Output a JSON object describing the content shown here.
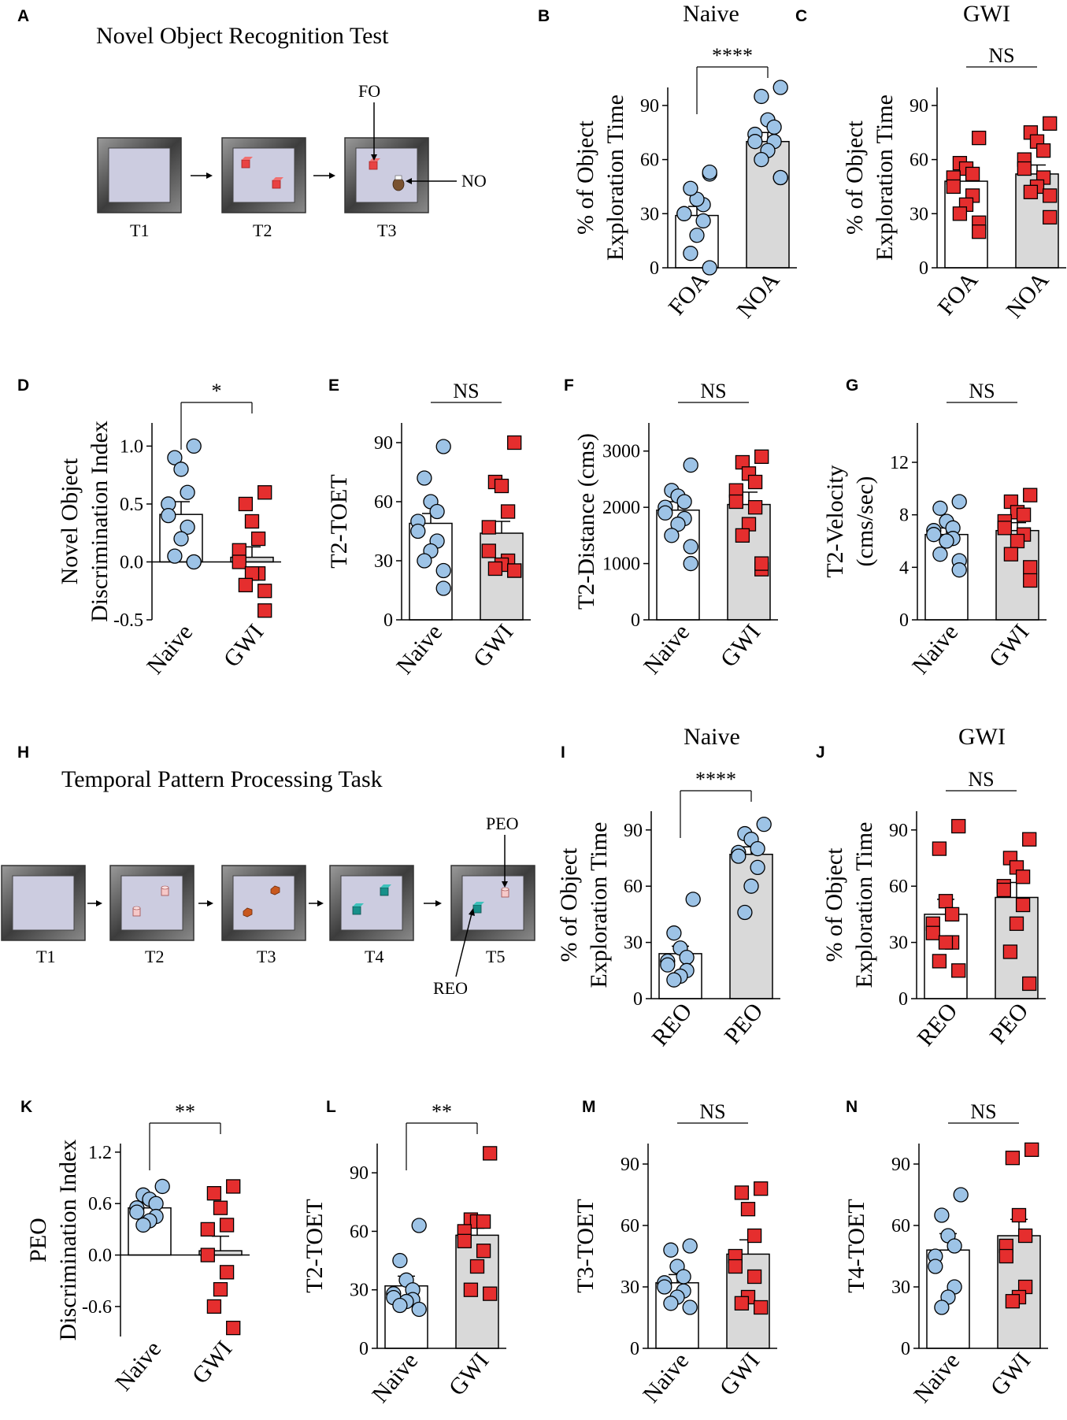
{
  "panel_letters": [
    "A",
    "B",
    "C",
    "D",
    "E",
    "F",
    "G",
    "H",
    "I",
    "J",
    "K",
    "L",
    "M",
    "N"
  ],
  "schematics": {
    "nor": {
      "title": "Novel Object Recognition Test",
      "trials": [
        "T1",
        "T2",
        "T3"
      ],
      "callouts": {
        "fo": "FO",
        "no": "NO"
      },
      "colors": {
        "arena_floor": "#cccce0",
        "object": "#e84343",
        "novel_object": "#7a5230"
      }
    },
    "tpp": {
      "title": "Temporal Pattern Processing Task",
      "trials": [
        "T1",
        "T2",
        "T3",
        "T4",
        "T5"
      ],
      "callouts": {
        "peo": "PEO",
        "reo": "REO"
      },
      "colors": {
        "cylinder": "#f6c9c9",
        "hexagon": "#c8581e",
        "cube": "#17908a"
      }
    }
  },
  "legend_colors": {
    "naive_marker": "#9dc3e6",
    "gwi_marker": "#e52e2e",
    "gray_bar": "#d9d9d9",
    "white_bar": "#ffffff"
  },
  "chart_data": [
    {
      "id": "B",
      "type": "bar",
      "title": "Naive",
      "ylabel": [
        "% of Object",
        "Exploration Time"
      ],
      "ylim": [
        0,
        100
      ],
      "yticks": [
        0,
        30,
        60,
        90
      ],
      "significance": "****",
      "categories": [
        "FOA",
        "NOA"
      ],
      "series": [
        {
          "name": "FOA",
          "mean": 29,
          "sem": 5,
          "marker": "circle",
          "bar": "white",
          "points": [
            0,
            8,
            18,
            26,
            30,
            30,
            35,
            38,
            44,
            52,
            53
          ]
        },
        {
          "name": "NOA",
          "mean": 70,
          "sem": 5,
          "marker": "circle",
          "bar": "gray",
          "points": [
            100,
            95,
            82,
            78,
            74,
            70,
            70,
            65,
            60,
            50,
            50
          ]
        }
      ]
    },
    {
      "id": "C",
      "type": "bar",
      "title": "GWI",
      "ylabel": [
        "% of Object",
        "Exploration Time"
      ],
      "ylim": [
        0,
        100
      ],
      "yticks": [
        0,
        30,
        60,
        90
      ],
      "significance": "NS",
      "categories": [
        "FOA",
        "NOA"
      ],
      "series": [
        {
          "name": "FOA",
          "mean": 48,
          "sem": 5,
          "marker": "square",
          "bar": "white",
          "points": [
            72,
            58,
            55,
            52,
            50,
            45,
            40,
            35,
            30,
            25,
            20
          ]
        },
        {
          "name": "NOA",
          "mean": 52,
          "sem": 5,
          "marker": "square",
          "bar": "gray",
          "points": [
            80,
            75,
            70,
            65,
            60,
            55,
            50,
            45,
            42,
            40,
            28
          ]
        }
      ]
    },
    {
      "id": "D",
      "type": "bar",
      "ylabel": [
        "Novel Object",
        "Discrimination Index"
      ],
      "ylim": [
        -0.5,
        1.2
      ],
      "yticks": [
        -0.5,
        0.0,
        0.5,
        1.0
      ],
      "yticklabels": [
        "-0.5",
        "0.0",
        "0.5",
        "1.0"
      ],
      "significance": "*",
      "categories": [
        "Naive",
        "GWI"
      ],
      "series": [
        {
          "name": "Naive",
          "mean": 0.41,
          "sem": 0.11,
          "marker": "circle",
          "bar": "white",
          "points": [
            1.0,
            0.9,
            0.8,
            0.6,
            0.5,
            0.4,
            0.3,
            0.2,
            0.05,
            0.0,
            0.0
          ]
        },
        {
          "name": "GWI",
          "mean": 0.04,
          "sem": 0.09,
          "marker": "square",
          "bar": "gray",
          "points": [
            0.6,
            0.5,
            0.35,
            0.2,
            0.1,
            0.0,
            -0.1,
            -0.1,
            -0.2,
            -0.25,
            -0.42
          ]
        }
      ]
    },
    {
      "id": "E",
      "type": "bar",
      "ylabel": [
        "T2-TOET"
      ],
      "ylim": [
        0,
        100
      ],
      "yticks": [
        0,
        30,
        60,
        90
      ],
      "significance": "NS",
      "categories": [
        "Naive",
        "GWI"
      ],
      "series": [
        {
          "name": "Naive",
          "mean": 49,
          "sem": 5,
          "marker": "circle",
          "bar": "white",
          "points": [
            88,
            72,
            60,
            55,
            50,
            45,
            40,
            35,
            30,
            25,
            16
          ]
        },
        {
          "name": "GWI",
          "mean": 44,
          "sem": 6,
          "marker": "square",
          "bar": "gray",
          "points": [
            90,
            70,
            68,
            55,
            47,
            35,
            30,
            28,
            26,
            25,
            25
          ]
        }
      ]
    },
    {
      "id": "F",
      "type": "bar",
      "ylabel": [
        "T2-Distance (cms)"
      ],
      "ylim": [
        0,
        3500
      ],
      "yticks": [
        0,
        1000,
        2000,
        3000
      ],
      "significance": "NS",
      "categories": [
        "Naive",
        "GWI"
      ],
      "series": [
        {
          "name": "Naive",
          "mean": 1950,
          "sem": 150,
          "marker": "circle",
          "bar": "white",
          "points": [
            2750,
            2300,
            2200,
            2100,
            2000,
            1900,
            1800,
            1700,
            1500,
            1300,
            1000
          ]
        },
        {
          "name": "GWI",
          "mean": 2050,
          "sem": 220,
          "marker": "square",
          "bar": "gray",
          "points": [
            2900,
            2800,
            2600,
            2450,
            2300,
            2100,
            2000,
            1700,
            1500,
            900,
            1000
          ]
        }
      ]
    },
    {
      "id": "G",
      "type": "bar",
      "ylabel": [
        "T2-Velocity",
        "(cms/sec)"
      ],
      "ylim": [
        0,
        15
      ],
      "yticks": [
        0,
        4,
        8,
        12
      ],
      "significance": "NS",
      "categories": [
        "Naive",
        "GWI"
      ],
      "series": [
        {
          "name": "Naive",
          "mean": 6.5,
          "sem": 0.5,
          "marker": "circle",
          "bar": "white",
          "points": [
            9,
            8.5,
            7.5,
            7,
            6.8,
            6.5,
            6.2,
            6,
            5,
            4.5,
            3.8
          ]
        },
        {
          "name": "GWI",
          "mean": 6.8,
          "sem": 0.6,
          "marker": "square",
          "bar": "gray",
          "points": [
            9.5,
            9,
            8.2,
            8,
            7.5,
            7,
            6.5,
            6,
            5,
            4,
            3
          ]
        }
      ]
    },
    {
      "id": "I",
      "type": "bar",
      "title": "Naive",
      "ylabel": [
        "% of Object",
        "Exploration Time"
      ],
      "ylim": [
        0,
        100
      ],
      "yticks": [
        0,
        30,
        60,
        90
      ],
      "significance": "****",
      "categories": [
        "REO",
        "PEO"
      ],
      "series": [
        {
          "name": "REO",
          "mean": 24,
          "sem": 4,
          "marker": "circle",
          "bar": "white",
          "points": [
            53,
            35,
            27,
            22,
            20,
            18,
            15,
            12,
            10
          ]
        },
        {
          "name": "PEO",
          "mean": 77,
          "sem": 4,
          "marker": "circle",
          "bar": "gray",
          "points": [
            93,
            88,
            85,
            80,
            78,
            76,
            70,
            60,
            46
          ]
        }
      ]
    },
    {
      "id": "J",
      "type": "bar",
      "title": "GWI",
      "ylabel": [
        "% of Object",
        "Exploration Time"
      ],
      "ylim": [
        0,
        100
      ],
      "yticks": [
        0,
        30,
        60,
        90
      ],
      "significance": "NS",
      "categories": [
        "REO",
        "PEO"
      ],
      "series": [
        {
          "name": "REO",
          "mean": 45,
          "sem": 8,
          "marker": "square",
          "bar": "white",
          "points": [
            92,
            80,
            52,
            45,
            40,
            35,
            30,
            30,
            20,
            15
          ]
        },
        {
          "name": "PEO",
          "mean": 54,
          "sem": 8,
          "marker": "square",
          "bar": "gray",
          "points": [
            85,
            75,
            70,
            65,
            60,
            58,
            50,
            40,
            25,
            8
          ]
        }
      ]
    },
    {
      "id": "K",
      "type": "bar",
      "ylabel": [
        "PEO",
        "Discrimination Index"
      ],
      "ylim": [
        -0.95,
        1.3
      ],
      "yticks": [
        -0.6,
        0.0,
        0.6,
        1.2
      ],
      "yticklabels": [
        "-0.6",
        "0.0",
        "0.6",
        "1.2"
      ],
      "significance": "**",
      "categories": [
        "Naive",
        "GWI"
      ],
      "series": [
        {
          "name": "Naive",
          "mean": 0.55,
          "sem": 0.06,
          "marker": "circle",
          "bar": "white",
          "points": [
            0.8,
            0.7,
            0.65,
            0.6,
            0.55,
            0.5,
            0.45,
            0.4,
            0.35
          ]
        },
        {
          "name": "GWI",
          "mean": 0.05,
          "sem": 0.17,
          "marker": "square",
          "bar": "gray",
          "points": [
            0.8,
            0.72,
            0.55,
            0.35,
            0.3,
            0.0,
            -0.2,
            -0.4,
            -0.6,
            -0.85
          ]
        }
      ]
    },
    {
      "id": "L",
      "type": "bar",
      "ylabel": [
        "T2-TOET"
      ],
      "ylim": [
        0,
        105
      ],
      "yticks": [
        0,
        30,
        60,
        90
      ],
      "significance": "**",
      "categories": [
        "Naive",
        "GWI"
      ],
      "series": [
        {
          "name": "Naive",
          "mean": 32,
          "sem": 5,
          "marker": "circle",
          "bar": "white",
          "points": [
            63,
            45,
            35,
            30,
            28,
            26,
            25,
            24,
            22,
            20
          ]
        },
        {
          "name": "GWI",
          "mean": 58,
          "sem": 7,
          "marker": "square",
          "bar": "gray",
          "points": [
            100,
            66,
            65,
            65,
            60,
            55,
            50,
            42,
            30,
            28
          ]
        }
      ]
    },
    {
      "id": "M",
      "type": "bar",
      "ylabel": [
        "T3-TOET"
      ],
      "ylim": [
        0,
        100
      ],
      "yticks": [
        0,
        30,
        60,
        90
      ],
      "significance": "NS",
      "categories": [
        "Naive",
        "GWI"
      ],
      "series": [
        {
          "name": "Naive",
          "mean": 32,
          "sem": 4,
          "marker": "circle",
          "bar": "white",
          "points": [
            50,
            48,
            40,
            35,
            32,
            30,
            28,
            25,
            22,
            20
          ]
        },
        {
          "name": "GWI",
          "mean": 46,
          "sem": 7,
          "marker": "square",
          "bar": "gray",
          "points": [
            78,
            76,
            68,
            55,
            45,
            40,
            35,
            25,
            22,
            20
          ]
        }
      ]
    },
    {
      "id": "N",
      "type": "bar",
      "ylabel": [
        "T4-TOET"
      ],
      "ylim": [
        0,
        100
      ],
      "yticks": [
        0,
        30,
        60,
        90
      ],
      "significance": "NS",
      "categories": [
        "Naive",
        "GWI"
      ],
      "series": [
        {
          "name": "Naive",
          "mean": 48,
          "sem": 8,
          "marker": "circle",
          "bar": "white",
          "points": [
            75,
            65,
            55,
            50,
            45,
            40,
            30,
            25,
            20
          ]
        },
        {
          "name": "GWI",
          "mean": 55,
          "sem": 8,
          "marker": "square",
          "bar": "gray",
          "points": [
            97,
            93,
            65,
            55,
            50,
            45,
            30,
            25,
            23
          ]
        }
      ]
    }
  ]
}
